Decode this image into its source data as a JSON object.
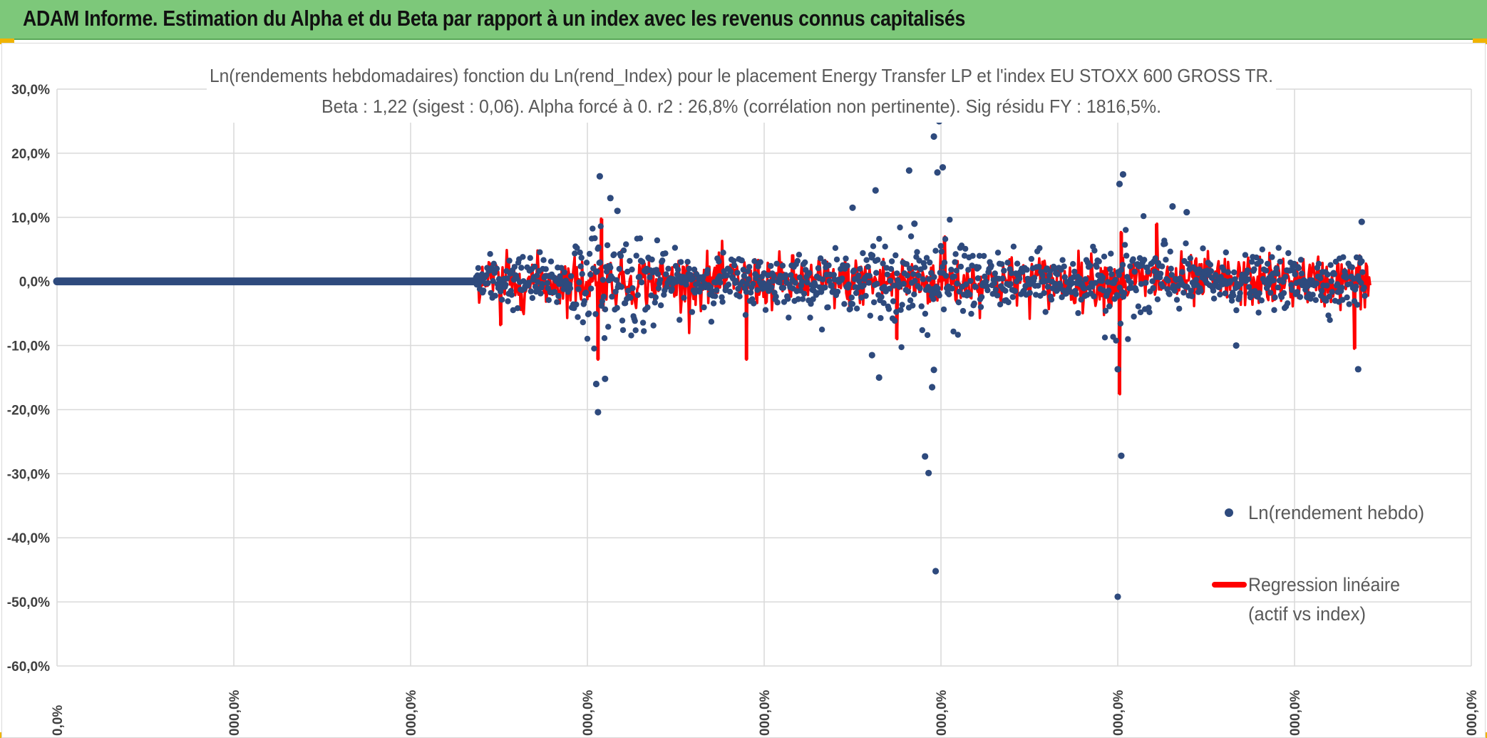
{
  "header": {
    "title": "ADAM Informe. Estimation du Alpha et du Beta par rapport à un index avec les revenus connus capitalisés"
  },
  "colors": {
    "banner": "#7dc87a",
    "series_points": "#2e4a7d",
    "series_regression": "#ff0000",
    "grid": "#d9d9d9"
  },
  "chart_data": {
    "type": "scatter",
    "title": "Ln(rendements hebdomadaires) fonction du Ln(rend_Index) pour le placement Energy Transfer LP et l'index EU STOXX 600 GROSS TR.",
    "subtitle": "Beta : 1,22 (sigest : 0,06). Alpha forcé à 0. r2 : 26,8% (corrélation non pertinente). Sig résidu FY : 1816,5%.",
    "xlabel": "",
    "ylabel": "",
    "ylim": [
      -0.6,
      0.3
    ],
    "xlim": [
      0,
      8
    ],
    "y_ticks": [
      "30,0%",
      "20,0%",
      "10,0%",
      "0,0%",
      "-10,0%",
      "-20,0%",
      "-30,0%",
      "-40,0%",
      "-50,0%",
      "-60,0%"
    ],
    "y_tick_values": [
      0.3,
      0.2,
      0.1,
      0.0,
      -0.1,
      -0.2,
      -0.3,
      -0.4,
      -0.5,
      -0.6
    ],
    "x_ticks": [
      "0,0%",
      "000,0%",
      "000,0%",
      "000,0%",
      "000,0%",
      "000,0%",
      "000,0%",
      "000,0%",
      "000,0%"
    ],
    "x_tick_values": [
      0,
      1,
      2,
      3,
      4,
      5,
      6,
      7,
      8
    ],
    "grid": true,
    "legend_position": "right",
    "legend": [
      {
        "label": "Ln(rendement hebdo)",
        "style": "marker"
      },
      {
        "label_line1": "Regression linéaire",
        "label_line2": "(actif vs index)",
        "style": "line"
      }
    ],
    "series": [
      {
        "name": "Ln(rendement hebdo)",
        "kind": "points",
        "x_range": [
          0,
          7.4
        ],
        "flat_until_x": 2.37,
        "notable_points": [
          {
            "x": 3.07,
            "y": 0.164
          },
          {
            "x": 3.05,
            "y": -0.16
          },
          {
            "x": 3.06,
            "y": -0.204
          },
          {
            "x": 3.1,
            "y": -0.152
          },
          {
            "x": 3.13,
            "y": 0.13
          },
          {
            "x": 3.17,
            "y": 0.11
          },
          {
            "x": 4.5,
            "y": 0.115
          },
          {
            "x": 4.63,
            "y": 0.142
          },
          {
            "x": 4.61,
            "y": -0.115
          },
          {
            "x": 4.65,
            "y": -0.15
          },
          {
            "x": 4.82,
            "y": 0.173
          },
          {
            "x": 4.85,
            "y": 0.09
          },
          {
            "x": 4.96,
            "y": 0.226
          },
          {
            "x": 4.99,
            "y": 0.25
          },
          {
            "x": 5.01,
            "y": 0.178
          },
          {
            "x": 4.98,
            "y": 0.17
          },
          {
            "x": 4.96,
            "y": -0.138
          },
          {
            "x": 4.95,
            "y": -0.165
          },
          {
            "x": 4.91,
            "y": -0.273
          },
          {
            "x": 4.93,
            "y": -0.299
          },
          {
            "x": 4.97,
            "y": -0.452
          },
          {
            "x": 6.03,
            "y": 0.167
          },
          {
            "x": 6.01,
            "y": 0.152
          },
          {
            "x": 6.0,
            "y": -0.137
          },
          {
            "x": 6.02,
            "y": -0.272
          },
          {
            "x": 6.0,
            "y": -0.492
          },
          {
            "x": 6.31,
            "y": 0.117
          },
          {
            "x": 6.39,
            "y": 0.108
          },
          {
            "x": 6.67,
            "y": -0.1
          },
          {
            "x": 7.38,
            "y": 0.093
          },
          {
            "x": 7.36,
            "y": -0.137
          }
        ]
      },
      {
        "name": "Regression linéaire (actif vs index)",
        "kind": "line",
        "x_range": [
          2.37,
          7.43
        ],
        "notable_spikes": [
          {
            "x": 3.08,
            "y": 0.098
          },
          {
            "x": 3.06,
            "y": -0.122
          },
          {
            "x": 3.9,
            "y": -0.122
          },
          {
            "x": 4.75,
            "y": -0.09
          },
          {
            "x": 5.02,
            "y": 0.07
          },
          {
            "x": 6.02,
            "y": 0.077
          },
          {
            "x": 6.01,
            "y": -0.176
          },
          {
            "x": 6.22,
            "y": 0.09
          },
          {
            "x": 7.34,
            "y": -0.105
          },
          {
            "x": 2.51,
            "y": -0.068
          }
        ]
      }
    ]
  }
}
